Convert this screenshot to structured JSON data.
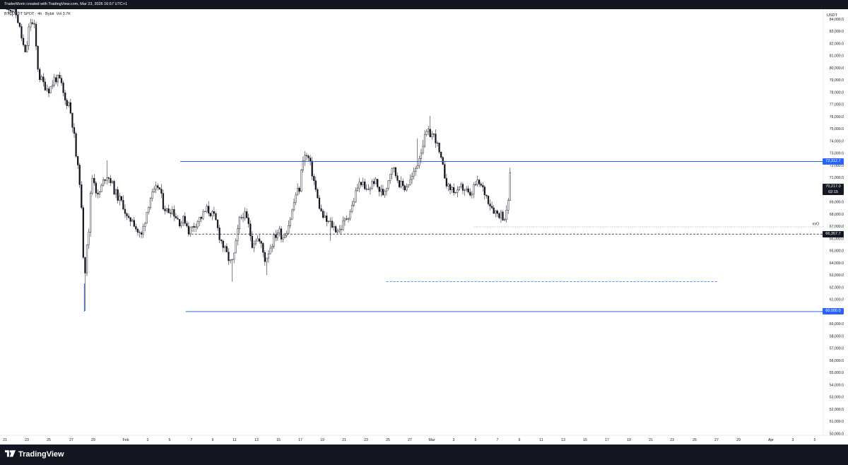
{
  "header": {
    "attribution": "TraderMorin created with TradingView.com, Mar 23, 2026 16:57 UTC+1"
  },
  "legend": {
    "symbol": "BTCUSDT SPOT · 4h · Bybit",
    "volume": "Vol 3.7K"
  },
  "footer": {
    "brand": "TradingView"
  },
  "colors": {
    "level_line": "#2962ff",
    "candle": "#131722",
    "background": "#ffffff",
    "frame": "#131722"
  },
  "chart_data": {
    "type": "candlestick",
    "currency": "USDT",
    "timeframe": "4h",
    "ylim": [
      50000,
      84700
    ],
    "y_ticks": [
      "84,000.0",
      "83,000.0",
      "82,000.0",
      "81,000.0",
      "80,000.0",
      "79,000.0",
      "78,000.0",
      "77,000.0",
      "76,000.0",
      "75,000.0",
      "74,000.0",
      "73,000.0",
      "72,000.0",
      "71,000.0",
      "70,000.0",
      "69,000.0",
      "68,000.0",
      "67,000.0",
      "66,000.0",
      "65,000.0",
      "64,000.0",
      "63,000.0",
      "62,000.0",
      "61,000.0",
      "60,000.0",
      "59,000.0",
      "58,000.0",
      "57,000.0",
      "56,000.0",
      "55,000.0",
      "54,000.0",
      "53,000.0",
      "52,000.0",
      "51,000.0",
      "50,000.0"
    ],
    "x_ticks": [
      "21",
      "23",
      "25",
      "27",
      "29",
      "Feb",
      "3",
      "5",
      "7",
      "9",
      "11",
      "13",
      "15",
      "17",
      "19",
      "21",
      "23",
      "25",
      "27",
      "Mar",
      "3",
      "5",
      "7",
      "9",
      "11",
      "13",
      "15",
      "17",
      "19",
      "21",
      "23",
      "25",
      "27",
      "29",
      "Apr",
      "3",
      "5"
    ],
    "price_labels": [
      {
        "text": "72,312.7",
        "value": 72312.7,
        "color": "#2962ff"
      },
      {
        "text": "70,217.0",
        "subtext": "02:15",
        "value": 70217.0,
        "color": "#131722"
      },
      {
        "text": "66,357.7",
        "value": 66357.7,
        "color": "#131722"
      },
      {
        "text": "60,000.0",
        "value": 60000.0,
        "color": "#2962ff"
      }
    ],
    "levels": [
      {
        "value": 72312.7,
        "style": "solid",
        "color": "#2962ff",
        "from_day": 5.0
      },
      {
        "value": 66357.7,
        "style": "dashed",
        "color": "#131722",
        "from_day": 5.7
      },
      {
        "value": 66950.0,
        "style": "dotted",
        "color": "#9598a1",
        "from_day": 32.0,
        "label": "m/O"
      },
      {
        "value": 62450.0,
        "style": "dashed",
        "color": "#2962ff",
        "from_day": 23.9,
        "to_day": 54.3
      },
      {
        "value": 60000.0,
        "style": "solid",
        "color": "#2962ff",
        "from_day": 5.5
      }
    ],
    "path": [
      [
        -10.9,
        85200
      ],
      [
        -10.0,
        84300
      ],
      [
        -9.5,
        82200
      ],
      [
        -9.2,
        80900
      ],
      [
        -8.8,
        83900
      ],
      [
        -8.4,
        83300
      ],
      [
        -8.0,
        79400
      ],
      [
        -7.5,
        78600
      ],
      [
        -7.0,
        78200
      ],
      [
        -6.5,
        79200
      ],
      [
        -6.0,
        78900
      ],
      [
        -5.6,
        77300
      ],
      [
        -5.2,
        77100
      ],
      [
        -4.8,
        74900
      ],
      [
        -4.5,
        72200
      ],
      [
        -4.2,
        70600
      ],
      [
        -4.0,
        67000
      ],
      [
        -3.8,
        62400
      ],
      [
        -3.6,
        65600
      ],
      [
        -3.4,
        66300
      ],
      [
        -3.2,
        70500
      ],
      [
        -3.0,
        71300
      ],
      [
        -2.6,
        69300
      ],
      [
        -2.2,
        70300
      ],
      [
        -1.8,
        71300
      ],
      [
        -1.4,
        70800
      ],
      [
        -1.0,
        69800
      ],
      [
        -0.6,
        69200
      ],
      [
        -0.2,
        68700
      ],
      [
        0.2,
        67300
      ],
      [
        0.6,
        67700
      ],
      [
        1.0,
        66700
      ],
      [
        1.4,
        66100
      ],
      [
        1.8,
        67700
      ],
      [
        2.2,
        69300
      ],
      [
        2.6,
        69700
      ],
      [
        3.0,
        70400
      ],
      [
        3.4,
        68800
      ],
      [
        3.8,
        68200
      ],
      [
        4.2,
        68500
      ],
      [
        4.6,
        67800
      ],
      [
        5.0,
        67300
      ],
      [
        5.4,
        67600
      ],
      [
        5.8,
        66600
      ],
      [
        6.2,
        67000
      ],
      [
        6.6,
        67500
      ],
      [
        7.0,
        67800
      ],
      [
        7.4,
        68400
      ],
      [
        7.8,
        68100
      ],
      [
        8.2,
        67600
      ],
      [
        8.6,
        66200
      ],
      [
        9.0,
        65200
      ],
      [
        9.4,
        64400
      ],
      [
        9.7,
        63800
      ],
      [
        10.0,
        64900
      ],
      [
        10.4,
        67400
      ],
      [
        10.8,
        68100
      ],
      [
        11.2,
        67300
      ],
      [
        11.6,
        65600
      ],
      [
        12.0,
        66100
      ],
      [
        12.4,
        65500
      ],
      [
        12.8,
        64200
      ],
      [
        13.2,
        65200
      ],
      [
        13.6,
        66000
      ],
      [
        14.0,
        66700
      ],
      [
        14.4,
        66100
      ],
      [
        14.8,
        66800
      ],
      [
        15.2,
        68000
      ],
      [
        15.6,
        69600
      ],
      [
        16.0,
        70200
      ],
      [
        16.2,
        72600
      ],
      [
        16.5,
        72800
      ],
      [
        16.8,
        72500
      ],
      [
        17.2,
        71000
      ],
      [
        17.6,
        69200
      ],
      [
        18.0,
        67900
      ],
      [
        18.4,
        67400
      ],
      [
        18.8,
        67200
      ],
      [
        19.2,
        66800
      ],
      [
        19.6,
        66700
      ],
      [
        20.0,
        67300
      ],
      [
        20.4,
        67900
      ],
      [
        20.8,
        68700
      ],
      [
        21.2,
        70100
      ],
      [
        21.6,
        70700
      ],
      [
        22.0,
        69800
      ],
      [
        22.4,
        70200
      ],
      [
        22.8,
        70800
      ],
      [
        23.2,
        70000
      ],
      [
        23.6,
        69700
      ],
      [
        24.0,
        70500
      ],
      [
        24.4,
        72000
      ],
      [
        24.8,
        71200
      ],
      [
        25.2,
        70400
      ],
      [
        25.6,
        70200
      ],
      [
        26.0,
        70600
      ],
      [
        26.4,
        71200
      ],
      [
        26.8,
        72300
      ],
      [
        27.2,
        73600
      ],
      [
        27.6,
        74600
      ],
      [
        28.0,
        74600
      ],
      [
        28.4,
        74300
      ],
      [
        28.8,
        72800
      ],
      [
        29.2,
        71400
      ],
      [
        29.6,
        70100
      ],
      [
        30.0,
        70100
      ],
      [
        30.4,
        69600
      ],
      [
        30.8,
        70200
      ],
      [
        31.2,
        70000
      ],
      [
        31.6,
        69300
      ],
      [
        32.0,
        70400
      ],
      [
        32.4,
        70500
      ],
      [
        32.8,
        70000
      ],
      [
        33.2,
        69300
      ],
      [
        33.6,
        68600
      ],
      [
        34.0,
        68100
      ],
      [
        34.4,
        68000
      ],
      [
        34.8,
        67700
      ],
      [
        35.0,
        68200
      ],
      [
        35.3,
        71400
      ],
      [
        35.4,
        70200
      ]
    ]
  }
}
